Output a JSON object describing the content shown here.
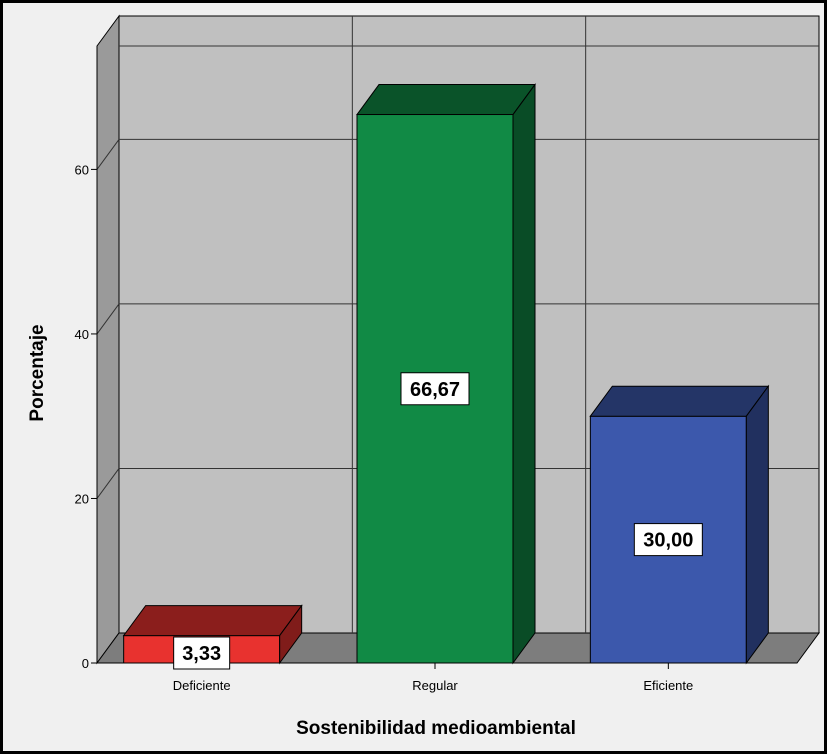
{
  "chart_data": {
    "type": "bar",
    "categories": [
      "Deficiente",
      "Regular",
      "Eficiente"
    ],
    "values": [
      3.33,
      66.67,
      30.0
    ],
    "data_labels": [
      "3,33",
      "66,67",
      "30,00"
    ],
    "colors": [
      "#e8322f",
      "#118a45",
      "#3c58ac"
    ],
    "xlabel": "Sostenibilidad medioambiental",
    "ylabel": "Porcentaje",
    "ylim": [
      0,
      75
    ],
    "yticks": [
      0,
      20,
      40,
      60
    ],
    "ytick_labels": [
      "0",
      "20",
      "40",
      "60"
    ],
    "grid": true,
    "style": "3d",
    "background": "#f0f0f0",
    "plot_background": "#c0c0c0"
  }
}
